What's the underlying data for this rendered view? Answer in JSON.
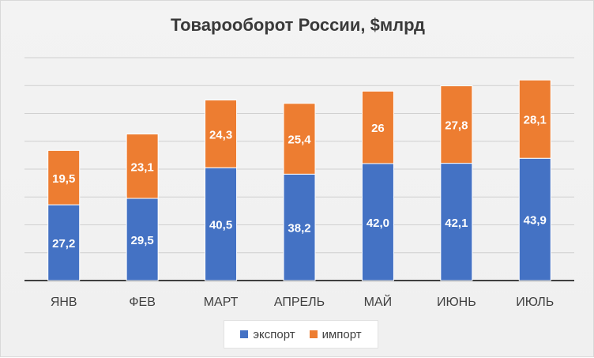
{
  "chart_data": {
    "type": "bar",
    "stacked": true,
    "title": "Товарооборот России, $млрд",
    "categories": [
      "ЯНВ",
      "ФЕВ",
      "МАРТ",
      "АПРЕЛЬ",
      "МАЙ",
      "ИЮНЬ",
      "ИЮЛЬ"
    ],
    "series": [
      {
        "name": "экспорт",
        "color": "#4472c4",
        "values": [
          27.2,
          29.5,
          40.5,
          38.2,
          42.0,
          42.1,
          43.9
        ],
        "labels": [
          "27,2",
          "29,5",
          "40,5",
          "38,2",
          "42,0",
          "42,1",
          "43,9"
        ]
      },
      {
        "name": "импорт",
        "color": "#ed7d31",
        "values": [
          19.5,
          23.1,
          24.3,
          25.4,
          26,
          27.8,
          28.1
        ],
        "labels": [
          "19,5",
          "23,1",
          "24,3",
          "25,4",
          "26",
          "27,8",
          "28,1"
        ]
      }
    ],
    "ylim": [
      0,
      80
    ],
    "grid": true,
    "legend": "bottom"
  }
}
